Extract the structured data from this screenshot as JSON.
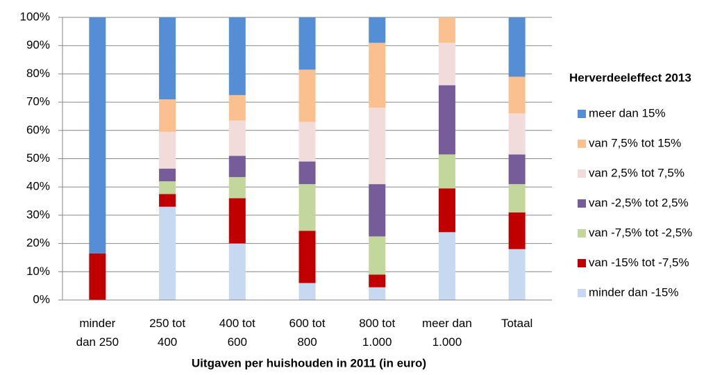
{
  "chart_data": {
    "type": "stacked_bar",
    "x_label": "Uitgaven per huishouden in 2011 (in euro)",
    "legend_title": "Herverdeeleffect 2013",
    "legend_position": "right",
    "grid": true,
    "categories": [
      "minder dan 250",
      "250 tot 400",
      "400 tot 600",
      "600 tot 800",
      "800 tot 1.000",
      "meer dan 1.000",
      "Totaal"
    ],
    "ylim": [
      0,
      100
    ],
    "yticks": [
      {
        "value": 0,
        "label": "0%"
      },
      {
        "value": 10,
        "label": "10%"
      },
      {
        "value": 20,
        "label": "20%"
      },
      {
        "value": 30,
        "label": "30%"
      },
      {
        "value": 40,
        "label": "40%"
      },
      {
        "value": 50,
        "label": "50%"
      },
      {
        "value": 60,
        "label": "60%"
      },
      {
        "value": 70,
        "label": "70%"
      },
      {
        "value": 80,
        "label": "80%"
      },
      {
        "value": 90,
        "label": "90%"
      },
      {
        "value": 100,
        "label": "100%"
      }
    ],
    "series": [
      {
        "name": "minder dan -15%",
        "color": "#c6d9f1",
        "values": [
          0,
          33,
          20,
          6,
          4.5,
          24,
          18
        ]
      },
      {
        "name": "van -15% tot -7,5%",
        "color": "#c00000",
        "values": [
          16.5,
          4.5,
          16,
          18.5,
          4.5,
          15.5,
          13
        ]
      },
      {
        "name": "van -7,5% tot -2,5%",
        "color": "#c3d69b",
        "values": [
          0,
          4.5,
          7.5,
          16.5,
          13.5,
          12,
          10
        ]
      },
      {
        "name": "van -2,5% tot 2,5%",
        "color": "#765c98",
        "values": [
          0,
          4.5,
          7.5,
          8,
          18.5,
          24.5,
          10.5
        ]
      },
      {
        "name": "van 2,5% tot 7,5%",
        "color": "#f2dcdb",
        "values": [
          0,
          13,
          12.5,
          14,
          27,
          15,
          14.5
        ]
      },
      {
        "name": "van 7,5% tot 15%",
        "color": "#fac090",
        "values": [
          0,
          11.5,
          9,
          18.5,
          23,
          9,
          13
        ]
      },
      {
        "name": "meer dan 15%",
        "color": "#558ed5",
        "values": [
          83.5,
          29,
          27.5,
          18.5,
          9,
          0,
          21
        ]
      }
    ]
  }
}
